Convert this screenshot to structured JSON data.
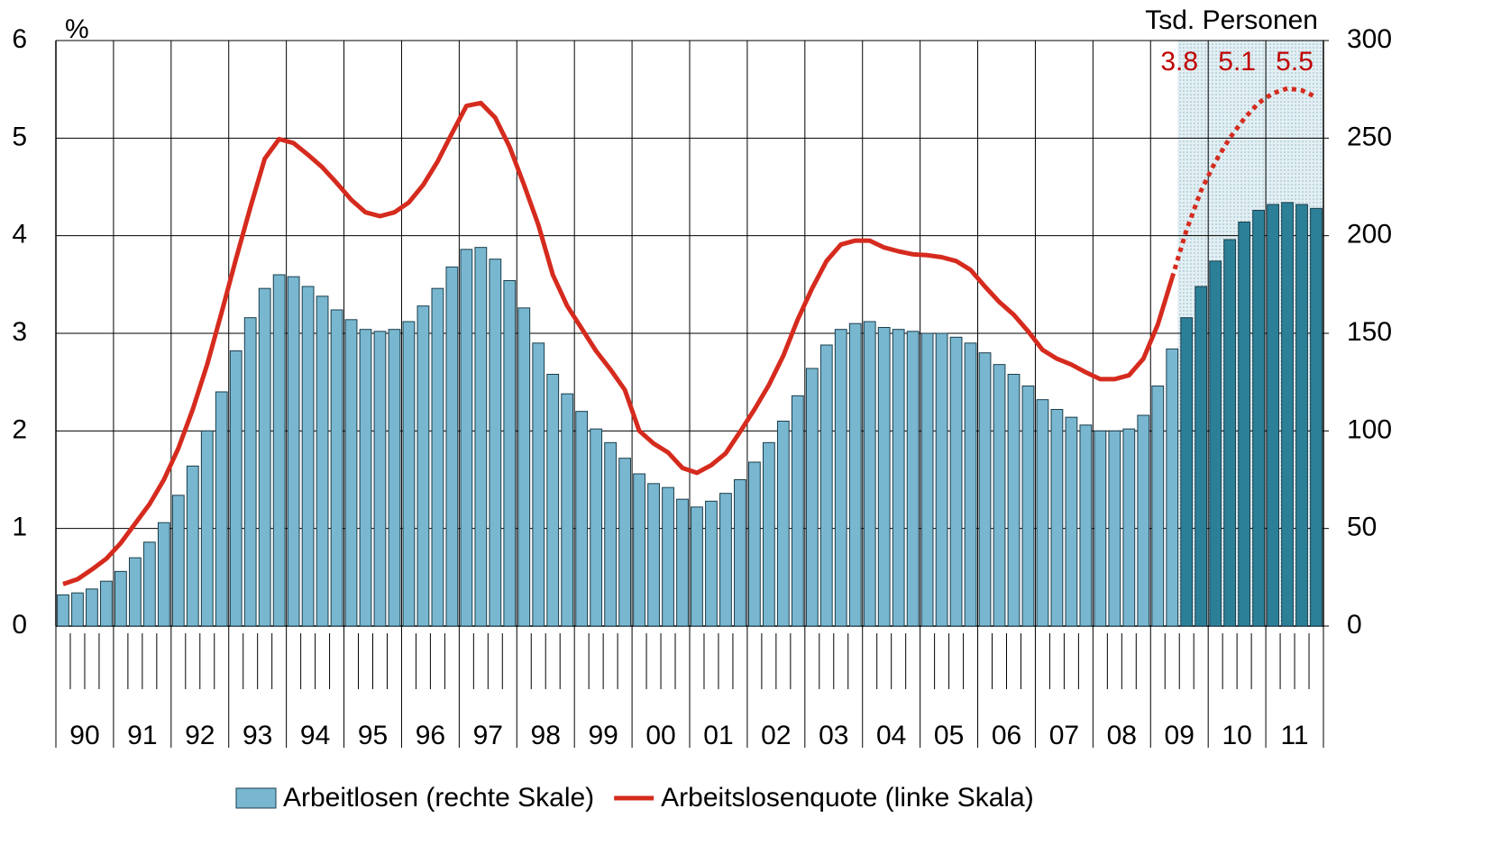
{
  "chart_data": {
    "type": "bar-line",
    "left_axis_label": "%",
    "right_axis_label": "Tsd. Personen",
    "year_labels": [
      "90",
      "91",
      "92",
      "93",
      "94",
      "95",
      "96",
      "97",
      "98",
      "99",
      "00",
      "01",
      "02",
      "03",
      "04",
      "05",
      "06",
      "07",
      "08",
      "09",
      "10",
      "11"
    ],
    "ylim": [
      0,
      6
    ],
    "yticks": [
      0,
      1,
      2,
      3,
      4,
      5,
      6
    ],
    "y2lim": [
      0,
      300
    ],
    "y2ticks": [
      0,
      50,
      100,
      150,
      200,
      250,
      300
    ],
    "grid": true,
    "series": [
      {
        "name": "Arbeitlosen (rechte Skale)",
        "type": "bar",
        "axis": "y2",
        "color": "#78b7cf",
        "values": [
          16,
          17,
          19,
          23,
          28,
          35,
          43,
          53,
          67,
          82,
          100,
          120,
          141,
          158,
          173,
          180,
          179,
          174,
          169,
          162,
          157,
          152,
          151,
          152,
          156,
          164,
          173,
          184,
          193,
          194,
          188,
          177,
          163,
          145,
          129,
          119,
          110,
          101,
          94,
          86,
          78,
          73,
          71,
          65,
          61,
          64,
          68,
          75,
          84,
          94,
          105,
          118,
          132,
          144,
          152,
          155,
          156,
          153,
          152,
          151,
          150,
          150,
          148,
          145,
          140,
          134,
          129,
          123,
          116,
          111,
          107,
          103,
          100,
          100,
          101,
          108,
          123,
          142,
          null,
          null,
          null,
          null,
          null,
          null,
          null,
          null,
          null,
          null
        ]
      },
      {
        "type": "bar",
        "axis": "y2",
        "color": "#2b8098",
        "values": [
          null,
          null,
          null,
          null,
          null,
          null,
          null,
          null,
          null,
          null,
          null,
          null,
          null,
          null,
          null,
          null,
          null,
          null,
          null,
          null,
          null,
          null,
          null,
          null,
          null,
          null,
          null,
          null,
          null,
          null,
          null,
          null,
          null,
          null,
          null,
          null,
          null,
          null,
          null,
          null,
          null,
          null,
          null,
          null,
          null,
          null,
          null,
          null,
          null,
          null,
          null,
          null,
          null,
          null,
          null,
          null,
          null,
          null,
          null,
          null,
          null,
          null,
          null,
          null,
          null,
          null,
          null,
          null,
          null,
          null,
          null,
          null,
          null,
          null,
          null,
          null,
          null,
          null,
          158,
          174,
          187,
          198,
          207,
          213,
          216,
          217,
          216,
          214
        ]
      },
      {
        "name": "Arbeitslosenquote (linke Skala)",
        "type": "line",
        "axis": "y",
        "color": "#d52b1e",
        "style": "solid",
        "values": [
          0.43,
          0.48,
          0.58,
          0.69,
          0.85,
          1.05,
          1.25,
          1.5,
          1.82,
          2.22,
          2.68,
          3.21,
          3.76,
          4.29,
          4.79,
          4.99,
          4.95,
          4.83,
          4.7,
          4.54,
          4.37,
          4.24,
          4.2,
          4.24,
          4.34,
          4.52,
          4.76,
          5.05,
          5.33,
          5.36,
          5.21,
          4.91,
          4.52,
          4.11,
          3.6,
          3.28,
          3.05,
          2.82,
          2.63,
          2.42,
          2.0,
          1.87,
          1.78,
          1.62,
          1.57,
          1.65,
          1.77,
          1.99,
          2.22,
          2.47,
          2.77,
          3.14,
          3.46,
          3.74,
          3.91,
          3.95,
          3.95,
          3.88,
          3.84,
          3.81,
          3.8,
          3.78,
          3.74,
          3.65,
          3.48,
          3.32,
          3.19,
          3.02,
          2.83,
          2.74,
          2.68,
          2.6,
          2.53,
          2.53,
          2.57,
          2.74,
          3.09,
          3.57,
          null,
          null,
          null,
          null,
          null,
          null,
          null,
          null,
          null,
          null
        ]
      },
      {
        "type": "line",
        "axis": "y",
        "color": "#d52b1e",
        "style": "dotted",
        "values": [
          null,
          null,
          null,
          null,
          null,
          null,
          null,
          null,
          null,
          null,
          null,
          null,
          null,
          null,
          null,
          null,
          null,
          null,
          null,
          null,
          null,
          null,
          null,
          null,
          null,
          null,
          null,
          null,
          null,
          null,
          null,
          null,
          null,
          null,
          null,
          null,
          null,
          null,
          null,
          null,
          null,
          null,
          null,
          null,
          null,
          null,
          null,
          null,
          null,
          null,
          null,
          null,
          null,
          null,
          null,
          null,
          null,
          null,
          null,
          null,
          null,
          null,
          null,
          null,
          null,
          null,
          null,
          null,
          null,
          null,
          null,
          null,
          null,
          null,
          null,
          null,
          null,
          3.57,
          4.06,
          4.46,
          4.76,
          5.0,
          5.2,
          5.36,
          5.46,
          5.51,
          5.49,
          5.42
        ]
      }
    ],
    "annotations": [
      {
        "text": "3.8",
        "color": "#c00000"
      },
      {
        "text": "5.1",
        "color": "#c00000"
      },
      {
        "text": "5.5",
        "color": "#c00000"
      }
    ]
  }
}
